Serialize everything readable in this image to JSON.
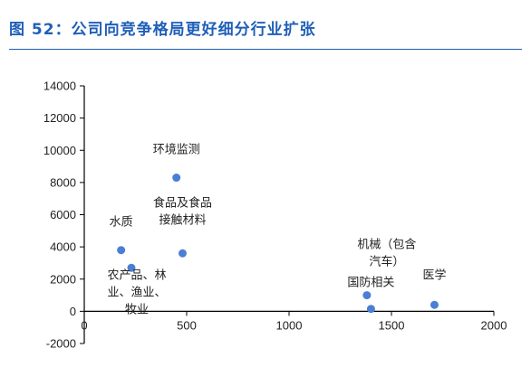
{
  "figure": {
    "title": "图 52：公司向竞争格局更好细分行业扩张",
    "accent_color": "#1f5fb8"
  },
  "chart_data": {
    "type": "scatter",
    "title": "",
    "xlabel": "",
    "ylabel": "",
    "xlim": [
      0,
      2000
    ],
    "ylim": [
      -2000,
      14000
    ],
    "x_ticks": [
      0,
      500,
      1000,
      1500,
      2000
    ],
    "y_ticks": [
      -2000,
      0,
      2000,
      4000,
      6000,
      8000,
      10000,
      12000,
      14000
    ],
    "grid": false,
    "legend": "none",
    "point_color": "#4a7fd4",
    "points": [
      {
        "label_lines": [
          "环境监测"
        ],
        "x": 450,
        "y": 8300
      },
      {
        "label_lines": [
          "水质"
        ],
        "x": 180,
        "y": 3800
      },
      {
        "label_lines": [
          "食品及食品",
          "接触材料"
        ],
        "x": 480,
        "y": 3600
      },
      {
        "label_lines": [
          "农产品、林",
          "业、渔业、",
          "牧业"
        ],
        "x": 230,
        "y": 2700
      },
      {
        "label_lines": [
          "机械（包含",
          "汽车）"
        ],
        "x": 1380,
        "y": 1000
      },
      {
        "label_lines": [
          "国防相关"
        ],
        "x": 1400,
        "y": 150
      },
      {
        "label_lines": [
          "医学"
        ],
        "x": 1710,
        "y": 400
      }
    ]
  }
}
